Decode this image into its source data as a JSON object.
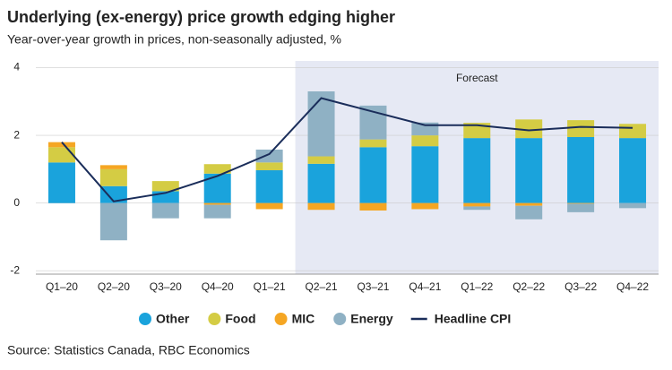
{
  "chart_data": {
    "type": "bar",
    "title": "Underlying (ex-energy) price growth edging higher",
    "subtitle": "Year-over-year growth in prices, non-seasonally adjusted, %",
    "annotation": "Forecast",
    "source": "Source: Statistics Canada, RBC Economics",
    "categories": [
      "Q1–20",
      "Q2–20",
      "Q3–20",
      "Q4–20",
      "Q1–21",
      "Q2–21",
      "Q3–21",
      "Q4–21",
      "Q1–22",
      "Q2–22",
      "Q3–22",
      "Q4–22"
    ],
    "series": [
      {
        "name": "Other",
        "color": "#1aa3dc",
        "values": [
          1.2,
          0.5,
          0.35,
          0.87,
          0.97,
          1.16,
          1.65,
          1.68,
          1.92,
          1.92,
          1.95,
          1.92
        ]
      },
      {
        "name": "Food",
        "color": "#d4cc44",
        "values": [
          0.45,
          0.5,
          0.3,
          0.28,
          0.23,
          0.22,
          0.23,
          0.32,
          0.45,
          0.55,
          0.5,
          0.42
        ]
      },
      {
        "name": "MIC",
        "color": "#f5a623",
        "values": [
          0.15,
          0.12,
          0,
          -0.05,
          -0.18,
          -0.2,
          -0.22,
          -0.18,
          -0.1,
          -0.08,
          -0.02,
          0
        ]
      },
      {
        "name": "Energy",
        "color": "#8fb1c4",
        "values": [
          0,
          -1.1,
          -0.45,
          -0.4,
          0.38,
          1.92,
          1.0,
          0.38,
          -0.1,
          -0.4,
          -0.25,
          -0.15
        ]
      },
      {
        "name": "Headline CPI",
        "color": "#1a2d5a",
        "type": "line",
        "values": [
          1.8,
          0.05,
          0.3,
          0.8,
          1.45,
          3.1,
          2.7,
          2.3,
          2.3,
          2.15,
          2.25,
          2.22
        ]
      }
    ],
    "ylim": [
      -2.1,
      4.2
    ],
    "yticks": [
      -2,
      0,
      2,
      4
    ],
    "grid": true
  }
}
